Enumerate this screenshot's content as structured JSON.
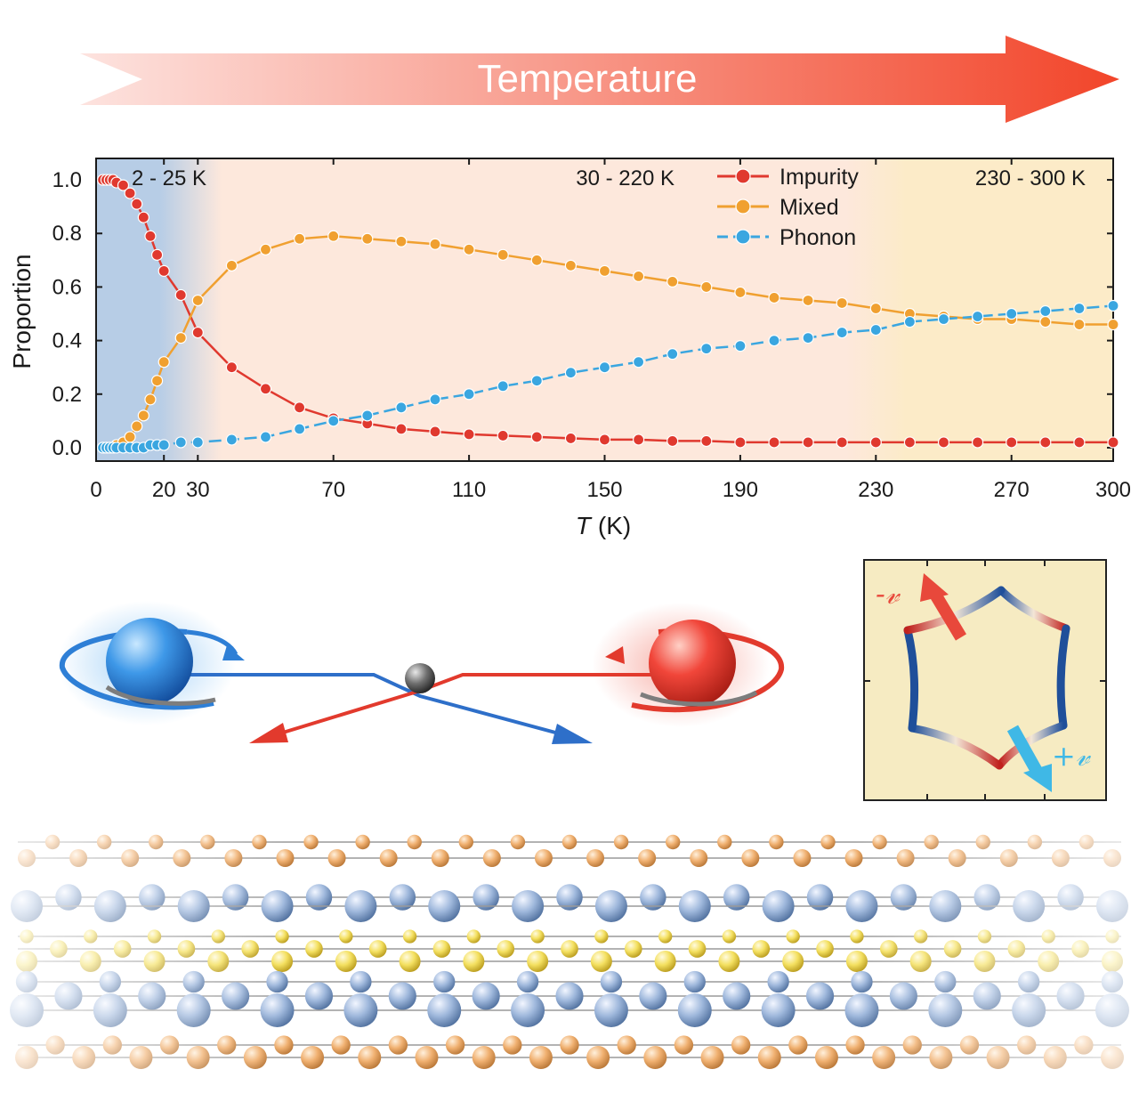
{
  "banner": {
    "label": "Temperature",
    "color_start": "#fde3df",
    "color_end": "#f2452a"
  },
  "chart_data": {
    "type": "line",
    "title": "",
    "xlabel_italic": "T",
    "xlabel_unit": "(K)",
    "ylabel": "Proportion",
    "xlim": [
      0,
      300
    ],
    "ylim": [
      -0.05,
      1.08
    ],
    "xticks": [
      0,
      20,
      30,
      70,
      110,
      150,
      190,
      230,
      270,
      300
    ],
    "yticks": [
      0.0,
      0.2,
      0.4,
      0.6,
      0.8,
      1.0
    ],
    "ytick_labels": [
      "0.0",
      "0.2",
      "0.4",
      "0.6",
      "0.8",
      "1.0"
    ],
    "regions": [
      {
        "label": "2 - 25 K",
        "from": 0,
        "to": 25,
        "color": "#b7cde6"
      },
      {
        "label": "30 - 220 K",
        "from": 25,
        "to": 230,
        "color": "#fde8dc"
      },
      {
        "label": "230 - 300 K",
        "from": 230,
        "to": 300,
        "color": "#fcebc8"
      }
    ],
    "x": [
      2,
      3,
      4,
      5,
      6,
      8,
      10,
      12,
      14,
      16,
      18,
      20,
      25,
      30,
      40,
      50,
      60,
      70,
      80,
      90,
      100,
      110,
      120,
      130,
      140,
      150,
      160,
      170,
      180,
      190,
      200,
      210,
      220,
      230,
      240,
      250,
      260,
      270,
      280,
      290,
      300
    ],
    "series": [
      {
        "name": "Impurity",
        "color": "#e0392f",
        "dashed": false,
        "values": [
          1.0,
          1.0,
          1.0,
          1.0,
          0.99,
          0.98,
          0.95,
          0.91,
          0.86,
          0.79,
          0.72,
          0.66,
          0.57,
          0.43,
          0.3,
          0.22,
          0.15,
          0.11,
          0.09,
          0.07,
          0.06,
          0.05,
          0.045,
          0.04,
          0.035,
          0.03,
          0.03,
          0.025,
          0.025,
          0.02,
          0.02,
          0.02,
          0.02,
          0.02,
          0.02,
          0.02,
          0.02,
          0.02,
          0.02,
          0.02,
          0.02
        ]
      },
      {
        "name": "Mixed",
        "color": "#f0a030",
        "dashed": false,
        "values": [
          0,
          0,
          0,
          0,
          0.01,
          0.02,
          0.04,
          0.08,
          0.12,
          0.18,
          0.25,
          0.32,
          0.41,
          0.55,
          0.68,
          0.74,
          0.78,
          0.79,
          0.78,
          0.77,
          0.76,
          0.74,
          0.72,
          0.7,
          0.68,
          0.66,
          0.64,
          0.62,
          0.6,
          0.58,
          0.56,
          0.55,
          0.54,
          0.52,
          0.5,
          0.49,
          0.48,
          0.48,
          0.47,
          0.46,
          0.46
        ]
      },
      {
        "name": "Phonon",
        "color": "#3aa6e0",
        "dashed": true,
        "values": [
          0,
          0,
          0,
          0,
          0,
          0,
          0,
          0,
          0,
          0.01,
          0.01,
          0.01,
          0.02,
          0.02,
          0.03,
          0.04,
          0.07,
          0.1,
          0.12,
          0.15,
          0.18,
          0.2,
          0.23,
          0.25,
          0.28,
          0.3,
          0.32,
          0.35,
          0.37,
          0.38,
          0.4,
          0.41,
          0.43,
          0.44,
          0.47,
          0.48,
          0.49,
          0.5,
          0.51,
          0.52,
          0.53
        ]
      }
    ]
  },
  "inset": {
    "minus_label": "-𝓋",
    "plus_label": "+𝓋",
    "minus_color": "#e8483b",
    "plus_color": "#3fb8e6",
    "background": "#f6ebc2"
  }
}
